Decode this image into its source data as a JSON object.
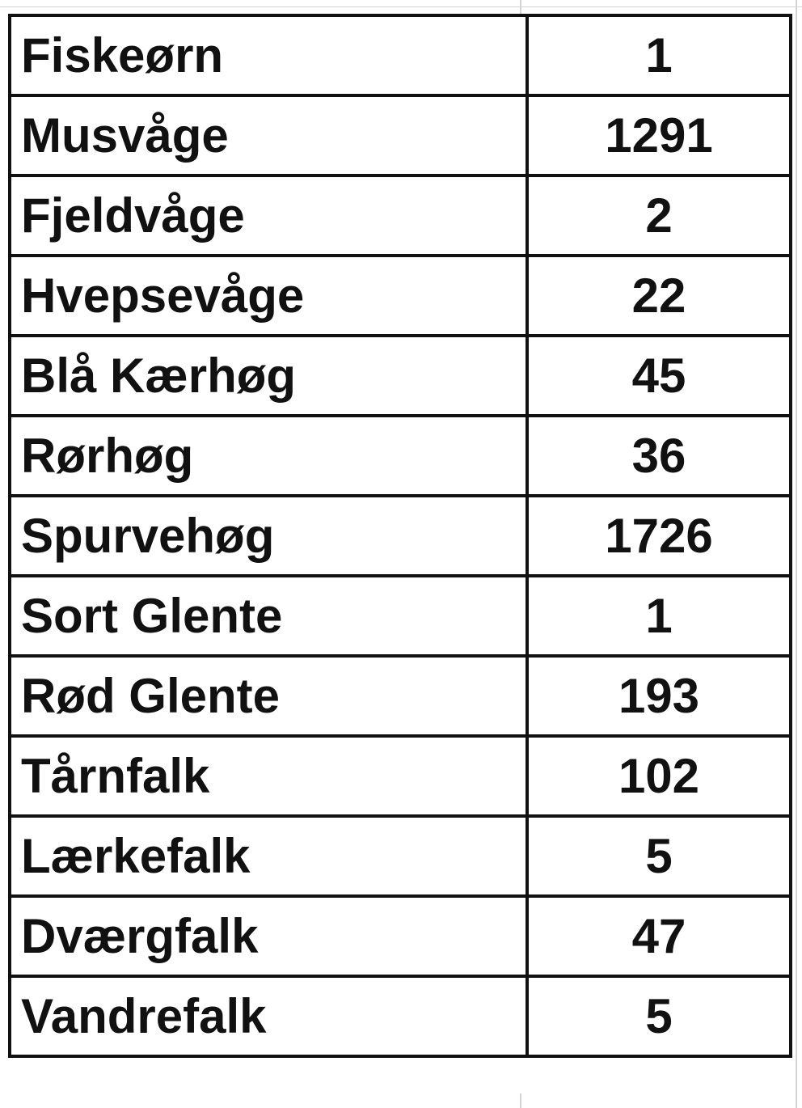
{
  "table": {
    "rows": [
      [
        "Fiskeørn",
        1
      ],
      [
        "Musvåge",
        1291
      ],
      [
        "Fjeldvåge",
        2
      ],
      [
        "Hvepsevåge",
        22
      ],
      [
        "Blå Kærhøg",
        45
      ],
      [
        "Rørhøg",
        36
      ],
      [
        "Spurvehøg",
        1726
      ],
      [
        "Sort Glente",
        1
      ],
      [
        "Rød Glente",
        193
      ],
      [
        "Tårnfalk",
        102
      ],
      [
        "Lærkefalk",
        5
      ],
      [
        "Dværgfalk",
        47
      ],
      [
        "Vandrefalk",
        5
      ]
    ]
  }
}
